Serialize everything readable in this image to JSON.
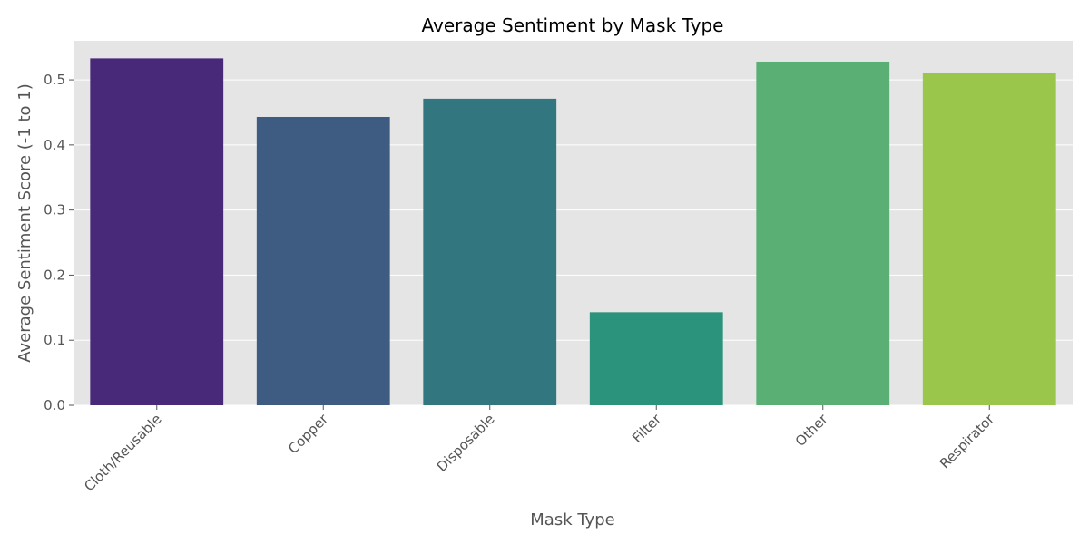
{
  "chart_data": {
    "type": "bar",
    "title": "Average Sentiment by Mask Type",
    "xlabel": "Mask Type",
    "ylabel": "Average Sentiment Score (-1 to 1)",
    "categories": [
      "Cloth/Reusable",
      "Copper",
      "Disposable",
      "Filter",
      "Other",
      "Respirator"
    ],
    "values": [
      0.533,
      0.443,
      0.471,
      0.143,
      0.528,
      0.511
    ],
    "ylim": [
      0,
      0.56
    ],
    "yticks": [
      0.0,
      0.1,
      0.2,
      0.3,
      0.4,
      0.5
    ],
    "ytick_labels": [
      "0.0",
      "0.1",
      "0.2",
      "0.3",
      "0.4",
      "0.5"
    ],
    "colors": [
      "#482878",
      "#3e5c81",
      "#32777f",
      "#2b937b",
      "#5ab074",
      "#9ac64c"
    ],
    "plot_background": "#e5e5e5",
    "grid": true,
    "grid_axis": "y",
    "legend": "none",
    "xtick_rotation": 45
  }
}
